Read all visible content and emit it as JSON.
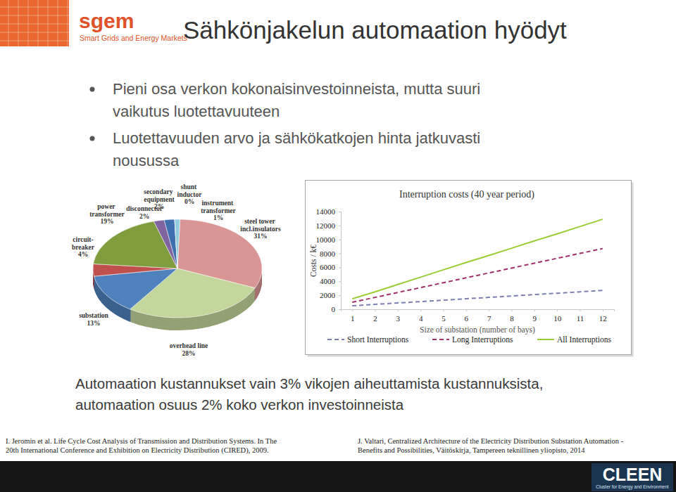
{
  "slide": {
    "logo": {
      "name": "sgem",
      "tagline": "Smart Grids and Energy Markets"
    },
    "title": "Sähkönjakelun automaation hyödyt",
    "bullets": [
      [
        "Pieni osa verkon kokonaisinvestoinneista, mutta suuri",
        "vaikutus luotettavuuteen"
      ],
      [
        "Luotettavuuden arvo ja sähkökatkojen hinta jatkuvasti",
        "nousussa"
      ]
    ],
    "caption": [
      "Automaation kustannukset vain 3% vikojen aiheuttamista kustannuksista,",
      "automaation osuus 2% koko verkon investoinneista"
    ],
    "references": [
      [
        "I. Jeromin et al. Life Cycle Cost Analysis of Transmission and Distribution Systems. In The",
        "20th International Conference and Exhibition on Electricity Distribution (CIRED), 2009."
      ],
      [
        "J. Valtari, Centralized Architecture of the Electricity Distribution Substation Automation -",
        "Benefits and Possibilities, Väitöskirja, Tampereen teknillinen yliopisto, 2014"
      ]
    ],
    "footer_logo": {
      "name": "CLEEN",
      "tagline": "Cluster for Energy and Environment"
    }
  },
  "chart_data": [
    {
      "type": "pie",
      "categories": [
        "steel tower incl.insulators",
        "overhead line",
        "substation",
        "circuit-breaker",
        "power transformer",
        "disconnector",
        "secondary equipment",
        "shunt inductor",
        "instrument transformer"
      ],
      "values": [
        31,
        28,
        13,
        4,
        19,
        2,
        2,
        0,
        1
      ],
      "value_labels": [
        "31%",
        "28%",
        "13%",
        "4%",
        "19%",
        "2%",
        "2%",
        "0%",
        "1%"
      ],
      "colors": [
        "#d99694",
        "#c3d69b",
        "#4f81bd",
        "#c0504d",
        "#7f9d3d",
        "#7f64a0",
        "#3f6fae",
        "#f79646",
        "#93cddd"
      ],
      "data_labels": true
    },
    {
      "type": "line",
      "title": "Interruption costs (40 year period)",
      "x_label": "Size of substation (number of bays)",
      "y_label": "Costs / k€",
      "x": [
        1,
        2,
        3,
        4,
        5,
        6,
        7,
        8,
        9,
        10,
        11,
        12
      ],
      "xlim": [
        0.5,
        12.5
      ],
      "xticks": [
        1,
        2,
        3,
        4,
        5,
        6,
        7,
        8,
        9,
        10,
        11,
        12
      ],
      "ylim": [
        0,
        14000
      ],
      "yticks": [
        0,
        2000,
        4000,
        6000,
        8000,
        10000,
        12000,
        14000
      ],
      "grid": false,
      "legend": "bottom",
      "series": [
        {
          "name": "Short Interruptions",
          "color": "#7a7fb0",
          "line_style": "dashed",
          "values": [
            500,
            700,
            900,
            1100,
            1300,
            1500,
            1700,
            1900,
            2100,
            2300,
            2500,
            2700
          ]
        },
        {
          "name": "Long Interruptions",
          "color": "#a0306a",
          "line_style": "dashed",
          "values": [
            1000,
            1700,
            2400,
            3100,
            3800,
            4500,
            5200,
            5900,
            6600,
            7300,
            8000,
            8700
          ]
        },
        {
          "name": "All Interruptions",
          "color": "#9bcc35",
          "line_style": "solid",
          "values": [
            1500,
            2500,
            3550,
            4600,
            5650,
            6700,
            7700,
            8750,
            9800,
            10800,
            11850,
            12900
          ]
        }
      ]
    }
  ]
}
